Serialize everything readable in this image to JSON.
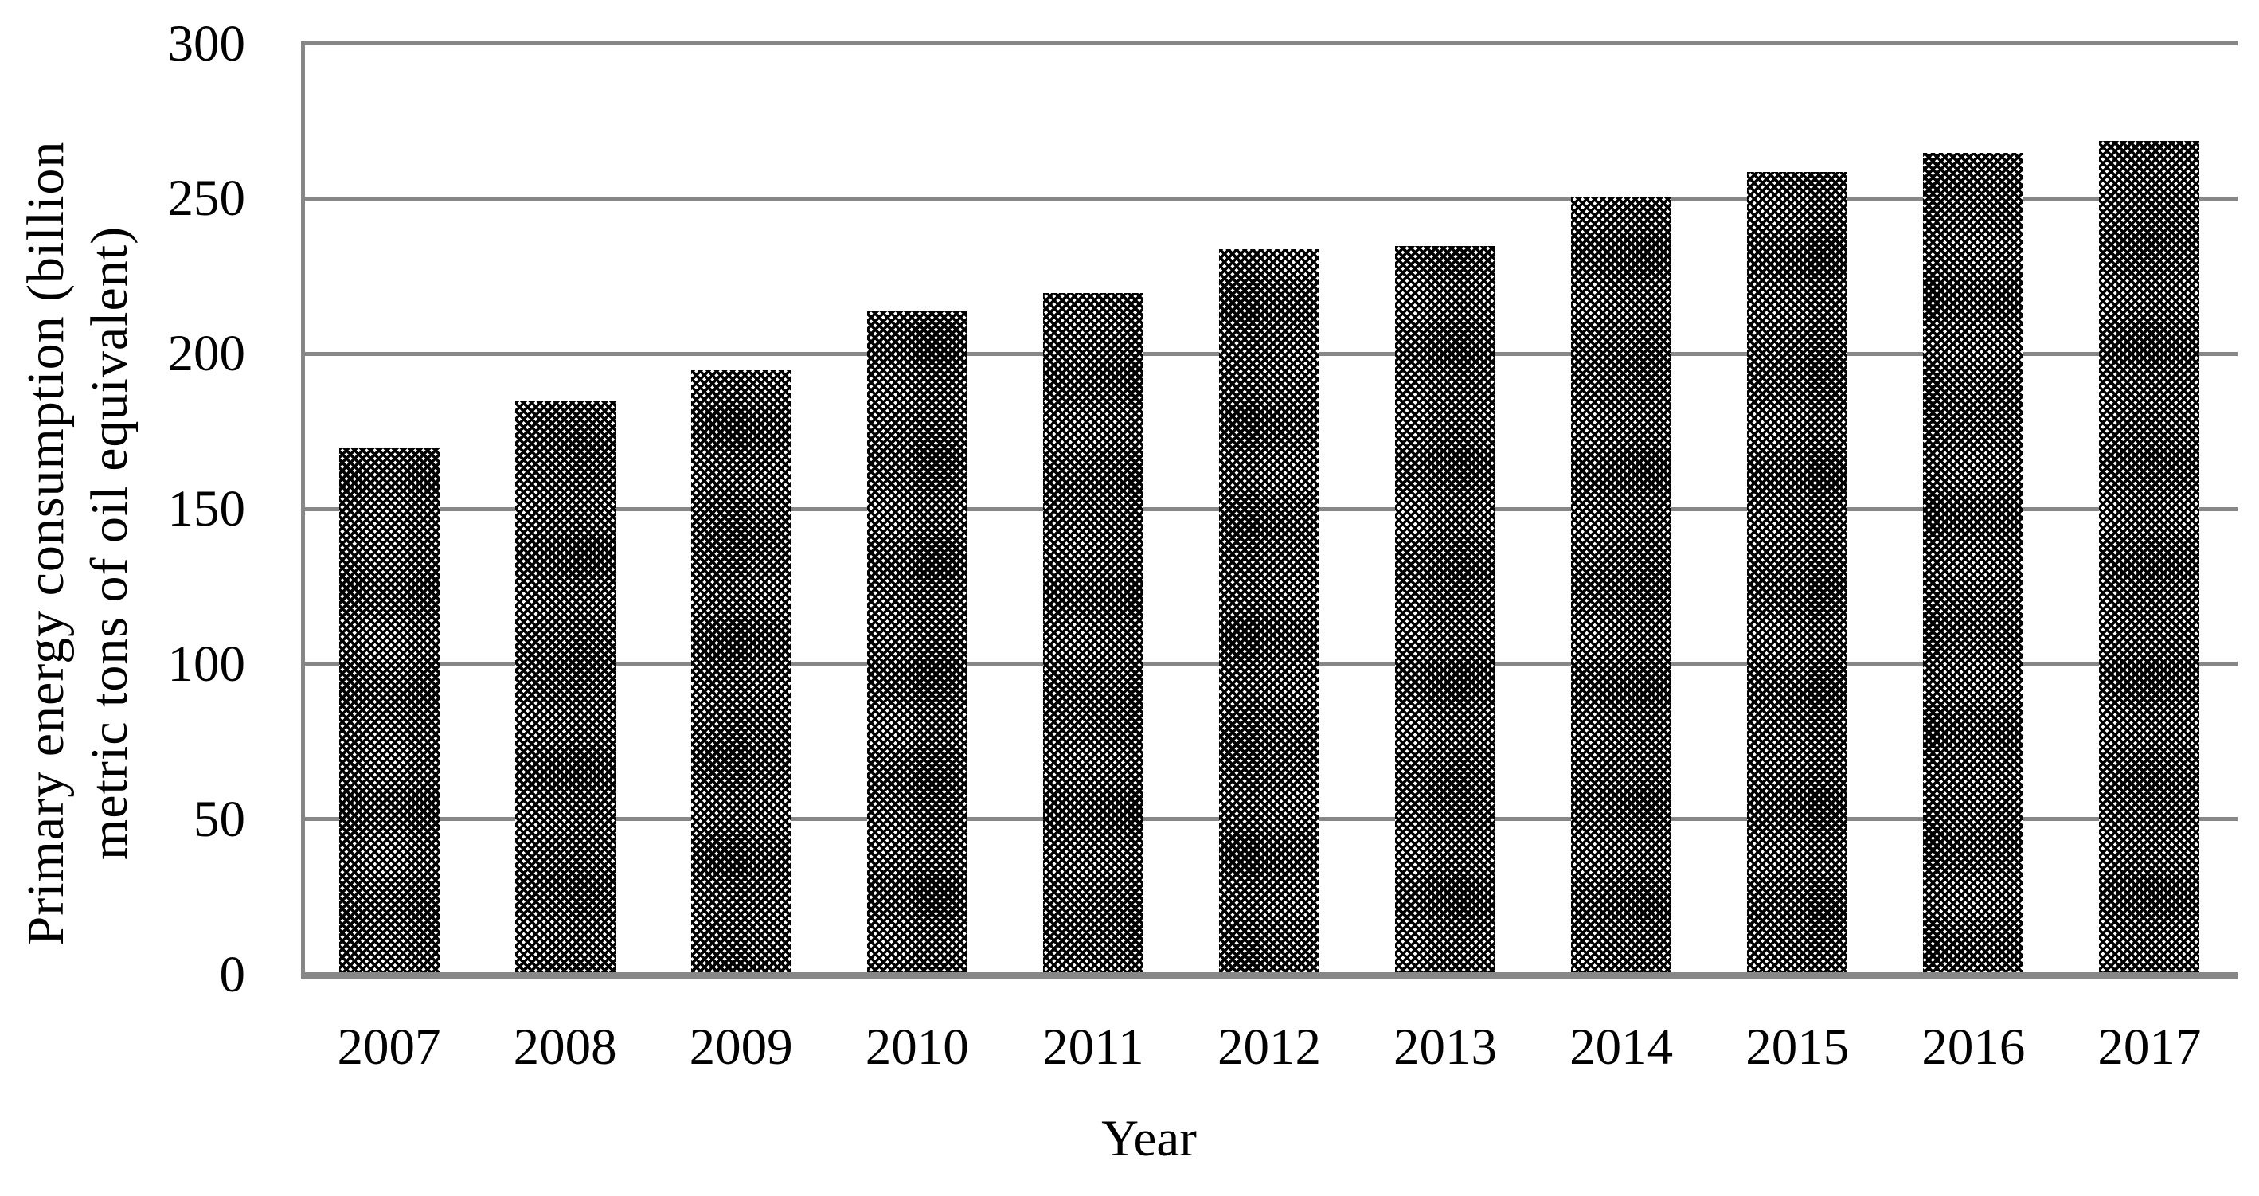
{
  "chart_data": {
    "type": "bar",
    "title": "",
    "xlabel": "Year",
    "ylabel": "Primary energy consumption (billion metric tons of oil equivalent)",
    "ylabel_lines": [
      "Primary energy consumption (billion",
      "metric tons of oil equivalent)"
    ],
    "categories": [
      "2007",
      "2008",
      "2009",
      "2010",
      "2011",
      "2012",
      "2013",
      "2014",
      "2015",
      "2016",
      "2017"
    ],
    "values": [
      169,
      184,
      194,
      213,
      219,
      233,
      234,
      250,
      258,
      264,
      268
    ],
    "ylim": [
      0,
      300
    ],
    "yticks": [
      300,
      250,
      200,
      150,
      100,
      50,
      0
    ],
    "grid": true,
    "legend": "none",
    "bar_style": {
      "fill_pattern": "trellis-diagonal-crosshatch",
      "pattern_color": "#000000",
      "pattern_background": "#ffffff"
    },
    "colors": {
      "gridline": "#878787",
      "axis": "#878787",
      "text": "#000000",
      "background": "#ffffff"
    }
  }
}
